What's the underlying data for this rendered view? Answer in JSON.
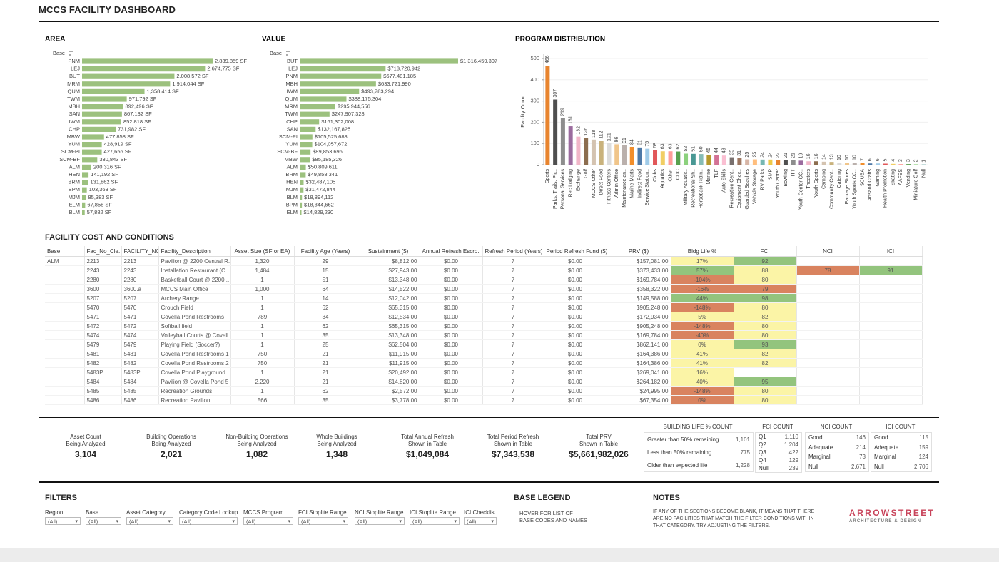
{
  "header": {
    "title": "MCCS FACILITY DASHBOARD"
  },
  "chart_data": [
    {
      "type": "hbar",
      "title": "AREA",
      "axis_label": "Base",
      "color": "#9cc17e",
      "categories": [
        "PNM",
        "LEJ",
        "BUT",
        "MRM",
        "QUM",
        "TWM",
        "MBH",
        "SAN",
        "IWM",
        "CHP",
        "MBW",
        "YUM",
        "SCM-PI",
        "SCM-BF",
        "ALM",
        "HEN",
        "BRM",
        "BPM",
        "MJM",
        "ELM",
        "BLM"
      ],
      "values": [
        2839859,
        2674775,
        2008572,
        1914044,
        1358414,
        971792,
        892496,
        867132,
        852818,
        731982,
        477858,
        428919,
        427656,
        330843,
        200316,
        141192,
        131862,
        103363,
        85383,
        67858,
        57882
      ],
      "value_labels": [
        "2,839,859 SF",
        "2,674,775 SF",
        "2,008,572 SF",
        "1,914,044 SF",
        "1,358,414 SF",
        "971,792 SF",
        "892,496 SF",
        "867,132 SF",
        "852,818 SF",
        "731,982 SF",
        "477,858 SF",
        "428,919 SF",
        "427,656 SF",
        "330,843 SF",
        "200,316 SF",
        "141,192 SF",
        "131,862 SF",
        "103,363 SF",
        "85,383 SF",
        "67,858 SF",
        "57,882 SF"
      ]
    },
    {
      "type": "hbar",
      "title": "VALUE",
      "axis_label": "Base",
      "color": "#9cc17e",
      "categories": [
        "BUT",
        "LEJ",
        "PNM",
        "MBH",
        "IWM",
        "QUM",
        "MRM",
        "TWM",
        "CHP",
        "SAN",
        "SCM-PI",
        "YUM",
        "SCM-BF",
        "MBW",
        "ALM",
        "BRM",
        "HEN",
        "MJM",
        "BLM",
        "BPM",
        "ELM"
      ],
      "values": [
        1316459307,
        713720942,
        677481185,
        633721990,
        493783294,
        388175304,
        295944556,
        247907328,
        161302008,
        132167825,
        105525688,
        104057672,
        89853696,
        85185326,
        50809611,
        49858341,
        32487105,
        31472844,
        18894112,
        18344662,
        14829230
      ],
      "value_labels": [
        "$1,316,459,307",
        "$713,720,942",
        "$677,481,185",
        "$633,721,990",
        "$493,783,294",
        "$388,175,304",
        "$295,944,556",
        "$247,907,328",
        "$161,302,008",
        "$132,167,825",
        "$105,525,688",
        "$104,057,672",
        "$89,853,696",
        "$85,185,326",
        "$50,809,611",
        "$49,858,341",
        "$32,487,105",
        "$31,472,844",
        "$18,894,112",
        "$18,344,662",
        "$14,829,230"
      ]
    },
    {
      "type": "bar",
      "title": "PROGRAM DISTRIBUTION",
      "y_label": "Facility Count",
      "categories": [
        "Sports",
        "Parks, Trails, Pic..",
        "Personal Services",
        "Rec Lodging",
        "Exchange",
        "Golf",
        "MCCS Other",
        "Direct Food",
        "Fitness Centers",
        "Admin Office",
        "Maintenance an..",
        "Marine Marts",
        "Indirect Food",
        "Service Station..",
        "Clubs",
        "Aquatics",
        "Other",
        "CDC",
        "Military Aquatic..",
        "Recreational Sh..",
        "Horseback Ridin..",
        "Marine",
        "TLF",
        "Auto Skills",
        "Recreation Cent..",
        "Equipment Chec..",
        "Guarded Beaches",
        "Vehicle Storage",
        "RV Parks",
        "SMP",
        "Youth Center",
        "Bowling",
        "ITT",
        "Youth Center OC..",
        "Theaters",
        "Youth Sports",
        "Camping",
        "Community Cent..",
        "Catering",
        "Package Stores",
        "Youth Sports OC..",
        "SCUBA",
        "Artsand Crafts",
        "Gaming",
        "Health Promotion",
        "Skating",
        "AAFES",
        "Vending",
        "Miniature Golf",
        "Null"
      ],
      "values": [
        466,
        307,
        219,
        181,
        132,
        126,
        118,
        112,
        101,
        96,
        91,
        84,
        81,
        75,
        68,
        63,
        63,
        62,
        52,
        51,
        50,
        45,
        44,
        43,
        35,
        31,
        25,
        25,
        24,
        24,
        22,
        21,
        21,
        19,
        16,
        16,
        14,
        13,
        10,
        10,
        10,
        7,
        6,
        6,
        5,
        4,
        3,
        3,
        2,
        1
      ],
      "colors": [
        "#e8842e",
        "#4f4f4f",
        "#8d8d8d",
        "#9b6b9e",
        "#f1b6c8",
        "#8c6d4f",
        "#d4c3b0",
        "#c9b27c",
        "#dcdcdc",
        "#f0c58a",
        "#bab0ac",
        "#f28e2b",
        "#4e79a7",
        "#a0cbe8",
        "#e15759",
        "#f1ce63",
        "#ff9d9a",
        "#59a14f",
        "#8cd17d",
        "#499894",
        "#86bcb6",
        "#b6992d",
        "#d37295",
        "#fabfd2",
        "#79706e",
        "#9d7660",
        "#d7b5a6",
        "#ffbe7d",
        "#76b7b2",
        "#edc948",
        "#e8842e",
        "#4f4f4f",
        "#8d8d8d",
        "#9b6b9e",
        "#f1b6c8",
        "#8c6d4f",
        "#d4c3b0",
        "#c9b27c",
        "#dcdcdc",
        "#f0c58a",
        "#bab0ac",
        "#f28e2b",
        "#4e79a7",
        "#a0cbe8",
        "#e15759",
        "#f1ce63",
        "#ff9d9a",
        "#59a14f",
        "#8cd17d",
        "#499894"
      ],
      "ylim": [
        0,
        500
      ],
      "yticks": [
        0,
        100,
        200,
        300,
        400,
        500
      ],
      "grid": true
    }
  ],
  "table": {
    "title": "FACILITY COST AND CONDITIONS",
    "columns": [
      "Base",
      "Fac_No_Cle..",
      "FACILITY_NO",
      "Facility_Description",
      "Asset Size (SF or EA)",
      "Facility Age (Years)",
      "Sustainment ($)",
      "Annual Refresh Escro..",
      "Refresh Period (Years)",
      "Period Refresh Fund ($)",
      "PRV ($)",
      "Bldg Life %",
      "FCI",
      "NCI",
      "ICI"
    ],
    "rows": [
      {
        "cells": [
          "ALM",
          "2213",
          "2213",
          "Pavilion @ 2200 Central R..",
          "1,320",
          "29",
          "$8,812.00",
          "$0.00",
          "7",
          "$0.00",
          "$157,081.00",
          "17%",
          "92",
          null,
          null
        ],
        "status": [
          "yellow",
          "green",
          null,
          null
        ]
      },
      {
        "cells": [
          null,
          "2243",
          "2243",
          "Installation Restaurant (C..",
          "1,484",
          "15",
          "$27,943.00",
          "$0.00",
          "7",
          "$0.00",
          "$373,433.00",
          "57%",
          "88",
          "78",
          "91"
        ],
        "status": [
          "green",
          "yellow",
          "red",
          "green"
        ]
      },
      {
        "cells": [
          null,
          "2280",
          "2280",
          "Basketball Court @ 2200 ..",
          "1",
          "51",
          "$13,348.00",
          "$0.00",
          "7",
          "$0.00",
          "$169,784.00",
          "-104%",
          "80",
          null,
          null
        ],
        "status": [
          "red",
          "yellow",
          null,
          null
        ]
      },
      {
        "cells": [
          null,
          "3600",
          "3600.a",
          "MCCS Main Office",
          "1,000",
          "64",
          "$14,522.00",
          "$0.00",
          "7",
          "$0.00",
          "$358,322.00",
          "-16%",
          "79",
          null,
          null
        ],
        "status": [
          "red",
          "red",
          null,
          null
        ]
      },
      {
        "cells": [
          null,
          "5207",
          "5207",
          "Archery Range",
          "1",
          "14",
          "$12,042.00",
          "$0.00",
          "7",
          "$0.00",
          "$149,588.00",
          "44%",
          "98",
          null,
          null
        ],
        "status": [
          "green",
          "green",
          null,
          null
        ]
      },
      {
        "cells": [
          null,
          "5470",
          "5470",
          "Crouch Field",
          "1",
          "62",
          "$65,315.00",
          "$0.00",
          "7",
          "$0.00",
          "$905,248.00",
          "-148%",
          "80",
          null,
          null
        ],
        "status": [
          "red",
          "yellow",
          null,
          null
        ]
      },
      {
        "cells": [
          null,
          "5471",
          "5471",
          "Covella Pond Restrooms",
          "789",
          "34",
          "$12,534.00",
          "$0.00",
          "7",
          "$0.00",
          "$172,934.00",
          "5%",
          "82",
          null,
          null
        ],
        "status": [
          "yellow",
          "yellow",
          null,
          null
        ]
      },
      {
        "cells": [
          null,
          "5472",
          "5472",
          "Softball field",
          "1",
          "62",
          "$65,315.00",
          "$0.00",
          "7",
          "$0.00",
          "$905,248.00",
          "-148%",
          "80",
          null,
          null
        ],
        "status": [
          "red",
          "yellow",
          null,
          null
        ]
      },
      {
        "cells": [
          null,
          "5474",
          "5474",
          "Volleyball Courts @ Covell..",
          "1",
          "35",
          "$13,348.00",
          "$0.00",
          "7",
          "$0.00",
          "$169,784.00",
          "-40%",
          "80",
          null,
          null
        ],
        "status": [
          "red",
          "yellow",
          null,
          null
        ]
      },
      {
        "cells": [
          null,
          "5479",
          "5479",
          "Playing Field (Soccer?)",
          "1",
          "25",
          "$62,504.00",
          "$0.00",
          "7",
          "$0.00",
          "$862,141.00",
          "0%",
          "93",
          null,
          null
        ],
        "status": [
          "yellow",
          "green",
          null,
          null
        ]
      },
      {
        "cells": [
          null,
          "5481",
          "5481",
          "Covella Pond Restrooms 1",
          "750",
          "21",
          "$11,915.00",
          "$0.00",
          "7",
          "$0.00",
          "$164,386.00",
          "41%",
          "82",
          null,
          null
        ],
        "status": [
          "yellow",
          "yellow",
          null,
          null
        ]
      },
      {
        "cells": [
          null,
          "5482",
          "5482",
          "Covella Pond Restrooms 2",
          "750",
          "21",
          "$11,915.00",
          "$0.00",
          "7",
          "$0.00",
          "$164,386.00",
          "41%",
          "82",
          null,
          null
        ],
        "status": [
          "yellow",
          "yellow",
          null,
          null
        ]
      },
      {
        "cells": [
          null,
          "5483P",
          "5483P",
          "Covella Pond Playground ..",
          "1",
          "21",
          "$20,492.00",
          "$0.00",
          "7",
          "$0.00",
          "$269,041.00",
          "16%",
          null,
          null,
          null
        ],
        "status": [
          "yellow",
          null,
          null,
          null
        ]
      },
      {
        "cells": [
          null,
          "5484",
          "5484",
          "Pavilion @ Covella Pond 5",
          "2,220",
          "21",
          "$14,820.00",
          "$0.00",
          "7",
          "$0.00",
          "$264,182.00",
          "40%",
          "95",
          null,
          null
        ],
        "status": [
          "yellow",
          "green",
          null,
          null
        ]
      },
      {
        "cells": [
          null,
          "5485",
          "5485",
          "Recreation Grounds",
          "1",
          "62",
          "$2,572.00",
          "$0.00",
          "7",
          "$0.00",
          "$24,995.00",
          "-148%",
          "80",
          null,
          null
        ],
        "status": [
          "red",
          "yellow",
          null,
          null
        ]
      },
      {
        "cells": [
          null,
          "5486",
          "5486",
          "Recreation Pavilion",
          "566",
          "35",
          "$3,778.00",
          "$0.00",
          "7",
          "$0.00",
          "$67,354.00",
          "0%",
          "80",
          null,
          null
        ],
        "status": [
          "red",
          "yellow",
          null,
          null
        ]
      }
    ]
  },
  "kpis": [
    {
      "label": [
        "Asset Count",
        "Being Analyzed"
      ],
      "value": "3,104"
    },
    {
      "label": [
        "Building Operations",
        "Being Analyzed"
      ],
      "value": "2,021"
    },
    {
      "label": [
        "Non-Building Operations",
        "Being Analyzed"
      ],
      "value": "1,082"
    },
    {
      "label": [
        "Whole Buildings",
        "Being Analyzed"
      ],
      "value": "1,348"
    },
    {
      "label": [
        "Total Annual Refresh",
        "Shown in Table"
      ],
      "value": "$1,049,084"
    },
    {
      "label": [
        "Total Period Refresh",
        "Shown in Table"
      ],
      "value": "$7,343,538"
    },
    {
      "label": [
        "Total PRV",
        "Shown in Table"
      ],
      "value": "$5,661,982,026"
    }
  ],
  "counts": [
    {
      "title": "BUILDING LIFE % COUNT",
      "rows": [
        [
          "Greater than 50% remaining",
          "1,101"
        ],
        [
          "Less than 50% remaining",
          "775"
        ],
        [
          "Older than expected life",
          "1,228"
        ]
      ]
    },
    {
      "title": "FCI COUNT",
      "rows": [
        [
          "Q1",
          "1,110"
        ],
        [
          "Q2",
          "1,204"
        ],
        [
          "Q3",
          "422"
        ],
        [
          "Q4",
          "129"
        ],
        [
          "Null",
          "239"
        ]
      ]
    },
    {
      "title": "NCI COUNT",
      "rows": [
        [
          "Good",
          "146"
        ],
        [
          "Adequate",
          "214"
        ],
        [
          "Marginal",
          "73"
        ],
        [
          "Null",
          "2,671"
        ]
      ]
    },
    {
      "title": "ICI COUNT",
      "rows": [
        [
          "Good",
          "115"
        ],
        [
          "Adequate",
          "159"
        ],
        [
          "Marginal",
          "124"
        ],
        [
          "Null",
          "2,706"
        ]
      ]
    }
  ],
  "filters": {
    "title": "FILTERS",
    "items": [
      {
        "label": "Region",
        "value": "(All)"
      },
      {
        "label": "Base",
        "value": "(All)"
      },
      {
        "label": "Asset Category",
        "value": "(All)"
      },
      {
        "label": "Category Code Lookup",
        "value": "(All)"
      },
      {
        "label": "MCCS Program",
        "value": "(All)"
      },
      {
        "label": "FCI Stoplite Range",
        "value": "(All)"
      },
      {
        "label": "NCI Stoplite Range",
        "value": "(All)"
      },
      {
        "label": "ICI Stoplite Range",
        "value": "(All)"
      },
      {
        "label": "ICI Checklist",
        "value": "(All)"
      }
    ]
  },
  "base_legend": {
    "title": "BASE LEGEND",
    "lines": [
      "HOVER FOR LIST OF",
      "BASE CODES AND NAMES"
    ]
  },
  "notes": {
    "title": "NOTES",
    "lines": [
      "IF ANY OF THE SECTIONS BECOME BLANK, IT MEANS THAT THERE",
      "ARE NO FACILITIES THAT MATCH THE FILTER CONDITIONS WITHIN",
      "THAT CATEGORY. TRY ADJUSTING THE FILTERS."
    ]
  },
  "logo": {
    "name": "ARROWSTREET",
    "tagline": "ARCHITECTURE & DESIGN"
  }
}
